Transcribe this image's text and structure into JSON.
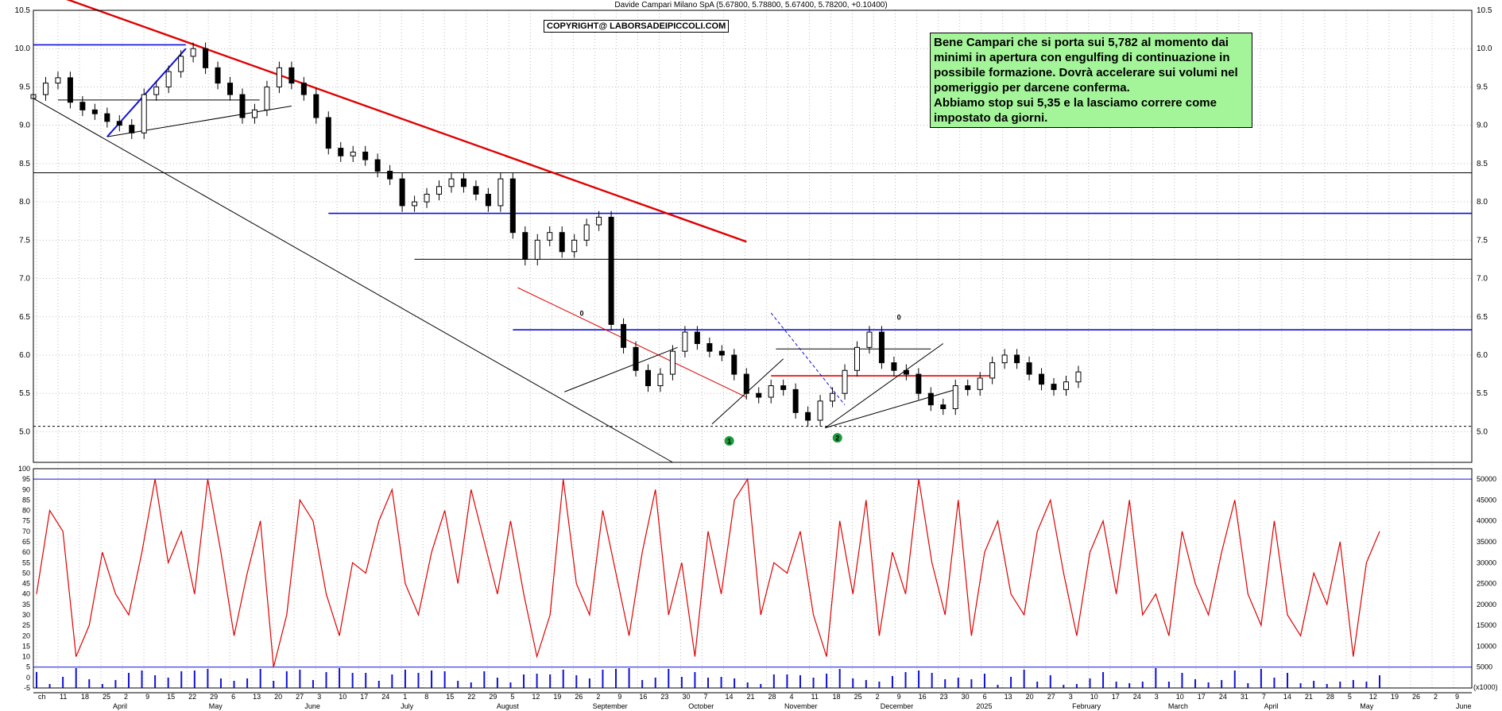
{
  "header": {
    "title": "Davide Campari Milano SpA (5.67800, 5.78800, 5.67400, 5.78200, +0.10400)"
  },
  "copyright": "COPYRIGHT@ LABORSADEIPICCOLI.COM",
  "commentary": {
    "line1": "Bene Campari che si porta sui 5,782 al momento dai minimi in apertura con engulfing di continuazione in possibile formazione. Dovrà accelerare sui volumi nel pomeriggio per darcene conferma.",
    "line2": "Abbiamo stop sui 5,35 e la lasciamo correre come impostato da giorni."
  },
  "colors": {
    "background": "#ffffff",
    "grid": "#bdbdbd",
    "main_trend_red": "#e00000",
    "level_blue": "#1010d8",
    "oscillator_red": "#e00000",
    "volume_blue": "#1010d8",
    "commentary_bg": "#a4f59a",
    "marker_green": "#1a9b3c"
  },
  "chart_data": [
    {
      "type": "line",
      "name": "price-candlestick",
      "title": "Davide Campari Milano SpA",
      "ylim": [
        4.6,
        10.5
      ],
      "y_ticks": [
        "10.5",
        "10.0",
        "9.5",
        "9.0",
        "8.5",
        "8.0",
        "7.5",
        "7.0",
        "6.5",
        "6.0",
        "5.5",
        "5.0"
      ],
      "x_tick_labels": [
        "ch",
        "11",
        "18",
        "25",
        "2",
        "9",
        "15",
        "22",
        "29",
        "6",
        "13",
        "20",
        "27",
        "3",
        "10",
        "17",
        "24",
        "1",
        "8",
        "15",
        "22",
        "29",
        "5",
        "12",
        "19",
        "26",
        "2",
        "9",
        "16",
        "23",
        "30",
        "7",
        "14",
        "21",
        "28",
        "4",
        "11",
        "18",
        "25",
        "2",
        "9",
        "16",
        "23",
        "30",
        "6",
        "13",
        "20",
        "27",
        "3",
        "10",
        "17",
        "24",
        "3",
        "10",
        "17",
        "24",
        "31",
        "7",
        "14",
        "21",
        "28",
        "5",
        "12",
        "19",
        "26",
        "2",
        "9"
      ],
      "month_labels": [
        "April",
        "May",
        "June",
        "July",
        "August",
        "September",
        "October",
        "November",
        "December",
        "2025",
        "February",
        "March",
        "April",
        "May",
        "June"
      ],
      "x": [
        0,
        5,
        10,
        15,
        20,
        25,
        30,
        35,
        40,
        45,
        50,
        55,
        60,
        65,
        70,
        75,
        80,
        85,
        90,
        95,
        100,
        105,
        110,
        115,
        120,
        125,
        130,
        135,
        140,
        145,
        150,
        155,
        160,
        165,
        170,
        175,
        180,
        185,
        190,
        195,
        200,
        205,
        210,
        215,
        220,
        225,
        230,
        235,
        240,
        245,
        250,
        255,
        260,
        265,
        270,
        275,
        280,
        285,
        290,
        295,
        300,
        305,
        310,
        315,
        320,
        325,
        330,
        335,
        340,
        345,
        350,
        355,
        360,
        365,
        370,
        375,
        380,
        385,
        390,
        395,
        400,
        405,
        410,
        415,
        420,
        425,
        430,
        435,
        440,
        445,
        450,
        455,
        460,
        465,
        470,
        475,
        480,
        485,
        490,
        495,
        500
      ],
      "close": [
        9.4,
        9.55,
        9.62,
        9.3,
        9.2,
        9.15,
        9.05,
        9.0,
        8.9,
        9.4,
        9.5,
        9.7,
        9.9,
        10.0,
        9.75,
        9.55,
        9.4,
        9.1,
        9.2,
        9.5,
        9.75,
        9.55,
        9.4,
        9.1,
        8.7,
        8.6,
        8.65,
        8.55,
        8.4,
        8.3,
        7.95,
        8.0,
        8.1,
        8.2,
        8.3,
        8.2,
        8.1,
        7.95,
        8.3,
        7.6,
        7.25,
        7.5,
        7.6,
        7.35,
        7.5,
        7.7,
        7.8,
        6.4,
        6.1,
        5.8,
        5.6,
        5.75,
        6.05,
        6.3,
        6.15,
        6.05,
        6.0,
        5.75,
        5.5,
        5.45,
        5.6,
        5.55,
        5.25,
        5.15,
        5.4,
        5.5,
        5.8,
        6.1,
        6.3,
        5.9,
        5.8,
        5.75,
        5.5,
        5.35,
        5.3,
        5.6,
        5.55,
        5.7,
        5.9,
        6.0,
        5.9,
        5.75,
        5.62,
        5.55,
        5.65,
        5.78,
        5.78,
        5.78,
        5.78,
        5.78,
        5.78,
        5.78,
        5.78,
        5.78,
        5.78,
        5.78,
        5.78,
        5.78,
        5.78,
        5.78,
        5.78
      ],
      "horizontal_levels": [
        {
          "value": 10.05,
          "color": "#1010d8"
        },
        {
          "value": 9.33,
          "color": "#000000"
        },
        {
          "value": 8.38,
          "color": "#000000"
        },
        {
          "value": 7.85,
          "color": "#1010d8"
        },
        {
          "value": 7.25,
          "color": "#000000"
        },
        {
          "value": 6.33,
          "color": "#1010d8"
        },
        {
          "value": 6.08,
          "color": "#000000"
        },
        {
          "value": 5.73,
          "color": "#e00000"
        },
        {
          "value": 5.07,
          "color": "#000000"
        }
      ],
      "trendlines": [
        {
          "x1": 0,
          "y1": 10.8,
          "x2": 290,
          "y2": 7.48,
          "color": "#e00000"
        },
        {
          "x1": 0,
          "y1": 9.35,
          "x2": 260,
          "y2": 4.6,
          "color": "#000000"
        },
        {
          "x1": 30,
          "y1": 8.85,
          "x2": 62,
          "y2": 10.0,
          "color": "#1010d8"
        },
        {
          "x1": 30,
          "y1": 8.85,
          "x2": 105,
          "y2": 9.25,
          "color": "#000000"
        },
        {
          "x1": 197,
          "y1": 6.88,
          "x2": 290,
          "y2": 5.45,
          "color": "#e00000"
        },
        {
          "x1": 216,
          "y1": 5.52,
          "x2": 262,
          "y2": 6.1,
          "color": "#000000"
        },
        {
          "x1": 276,
          "y1": 5.1,
          "x2": 305,
          "y2": 5.95,
          "color": "#000000"
        },
        {
          "x1": 300,
          "y1": 6.55,
          "x2": 330,
          "y2": 5.35,
          "color": "#1010d8"
        },
        {
          "x1": 322,
          "y1": 5.05,
          "x2": 370,
          "y2": 6.15,
          "color": "#000000"
        },
        {
          "x1": 322,
          "y1": 5.05,
          "x2": 375,
          "y2": 5.55,
          "color": "#000000"
        }
      ],
      "annotations": [
        "1",
        "2",
        "0",
        "0"
      ]
    },
    {
      "type": "line",
      "name": "oscillator-and-volume",
      "ylim": [
        -5,
        100
      ],
      "y_ticks": [
        "100",
        "95",
        "90",
        "85",
        "80",
        "75",
        "70",
        "65",
        "60",
        "55",
        "50",
        "45",
        "40",
        "35",
        "30",
        "25",
        "20",
        "15",
        "10",
        "5",
        "0",
        "-5"
      ],
      "right_ticks": [
        "50000",
        "45000",
        "40000",
        "35000",
        "30000",
        "25000",
        "20000",
        "15000",
        "10000",
        "5000"
      ],
      "right_scale_note": "(x1000)",
      "reference_levels": [
        95,
        5
      ],
      "oscillator": [
        40,
        80,
        70,
        10,
        25,
        60,
        40,
        30,
        60,
        95,
        55,
        70,
        40,
        95,
        60,
        20,
        50,
        75,
        5,
        30,
        85,
        75,
        40,
        20,
        55,
        50,
        75,
        90,
        45,
        30,
        60,
        80,
        45,
        90,
        65,
        40,
        75,
        40,
        10,
        30,
        95,
        45,
        30,
        80,
        50,
        20,
        60,
        90,
        30,
        55,
        10,
        70,
        40,
        85,
        95,
        30,
        55,
        50,
        70,
        30,
        10,
        75,
        40,
        85,
        20,
        60,
        40,
        95,
        55,
        30,
        85,
        20,
        60,
        75,
        40,
        30,
        70,
        85,
        50,
        20,
        60,
        75,
        40,
        85,
        30,
        40,
        20,
        70,
        45,
        30,
        60,
        85,
        40,
        25,
        75,
        30,
        20,
        50,
        35,
        65,
        10,
        55,
        70
      ]
    }
  ]
}
